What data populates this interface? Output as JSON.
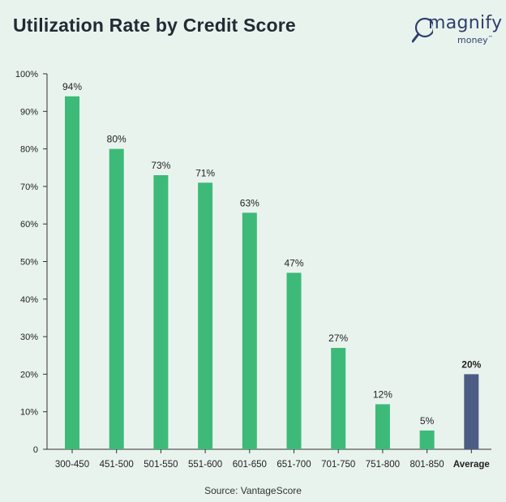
{
  "header": {
    "title": "Utilization Rate by Credit Score"
  },
  "logo": {
    "name": "magnify",
    "sub": "money",
    "tm": "™",
    "icon": "magnifier-icon"
  },
  "footer": {
    "source": "Source: VantageScore"
  },
  "colors": {
    "bar": "#3dba78",
    "highlight": "#4d5c85",
    "background": "#e9f3ee"
  },
  "chart_data": {
    "type": "bar",
    "title": "Utilization Rate by Credit Score",
    "xlabel": "",
    "ylabel": "",
    "categories": [
      "300-450",
      "451-500",
      "501-550",
      "551-600",
      "601-650",
      "651-700",
      "701-750",
      "751-800",
      "801-850",
      "Average"
    ],
    "values": [
      94,
      80,
      73,
      71,
      63,
      47,
      27,
      12,
      5,
      20
    ],
    "data_labels": [
      "94%",
      "80%",
      "73%",
      "71%",
      "63%",
      "47%",
      "27%",
      "12%",
      "5%",
      "20%"
    ],
    "highlight_category": "Average",
    "ylim": [
      0,
      100
    ],
    "yticks": [
      0,
      10,
      20,
      30,
      40,
      50,
      60,
      70,
      80,
      90,
      100
    ],
    "ytick_labels": [
      "0",
      "10%",
      "20%",
      "30%",
      "40%",
      "50%",
      "60%",
      "70%",
      "80%",
      "90%",
      "100%"
    ],
    "grid": false,
    "legend": "none"
  }
}
